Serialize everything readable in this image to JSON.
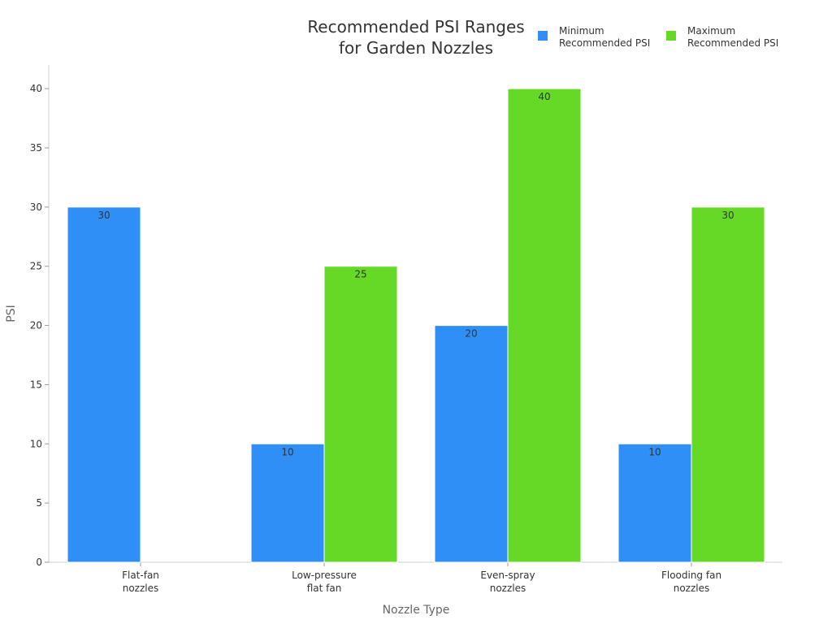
{
  "chart_data": {
    "type": "bar",
    "title": [
      "Recommended PSI Ranges",
      "for Garden Nozzles"
    ],
    "xlabel": "Nozzle Type",
    "ylabel": "PSI",
    "ylim": [
      0,
      42
    ],
    "yticks": [
      0,
      5,
      10,
      15,
      20,
      25,
      30,
      35,
      40
    ],
    "categories": [
      [
        "Flat-fan",
        "nozzles"
      ],
      [
        "Low-pressure",
        "flat fan"
      ],
      [
        "Even-spray",
        "nozzles"
      ],
      [
        "Flooding fan",
        "nozzles"
      ]
    ],
    "series": [
      {
        "name": [
          "Minimum",
          "Recommended PSI"
        ],
        "color": "#2f8ff7",
        "values": [
          30,
          10,
          20,
          10
        ]
      },
      {
        "name": [
          "Maximum",
          "Recommended PSI"
        ],
        "color": "#66d926",
        "values": [
          null,
          25,
          40,
          30
        ]
      }
    ],
    "legend_position": "top-right",
    "grid": false
  }
}
